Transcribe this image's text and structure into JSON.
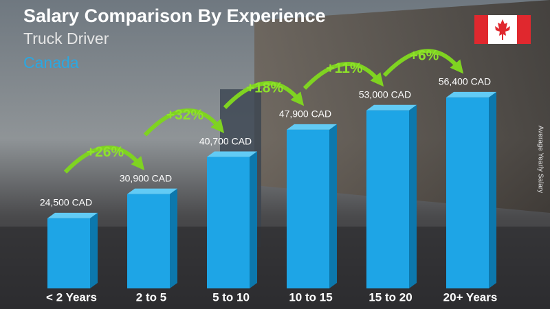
{
  "chart_data": {
    "type": "bar",
    "title": "Salary Comparison By Experience",
    "subtitle": "Truck Driver",
    "location": "Canada",
    "side_label": "Average Yearly Salary",
    "categories": [
      "< 2 Years",
      "2 to 5",
      "5 to 10",
      "10 to 15",
      "15 to 20",
      "20+ Years"
    ],
    "values": [
      24500,
      30900,
      40700,
      47900,
      53000,
      56400
    ],
    "value_labels": [
      "24,500 CAD",
      "30,900 CAD",
      "40,700 CAD",
      "47,900 CAD",
      "53,000 CAD",
      "56,400 CAD"
    ],
    "changes": [
      "+26%",
      "+32%",
      "+18%",
      "+11%",
      "+6%"
    ],
    "color": "#1ea5e6",
    "ylim": [
      6000,
      64000
    ]
  }
}
